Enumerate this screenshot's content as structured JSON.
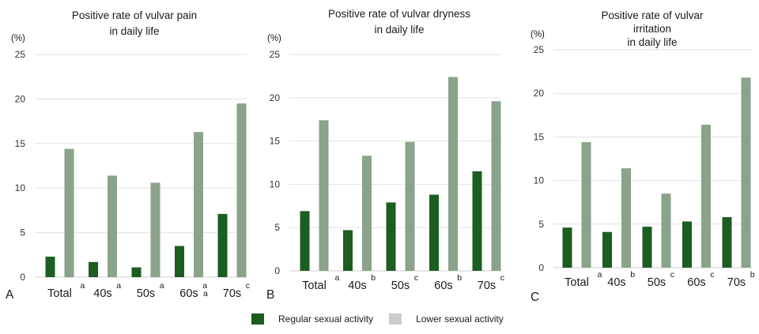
{
  "colors": {
    "regular": "#1b5e20",
    "lower": "#8aa38a",
    "grid": "#e2e2e2",
    "text": "#1a1a1a"
  },
  "legend": {
    "regular_label": "Regular sexual activity",
    "lower_label": "Lower sexual activity",
    "regular_color": "#1b5e20",
    "lower_color": "#cccccc"
  },
  "chart_data": [
    {
      "type": "bar",
      "panel_letter": "A",
      "title": [
        "Positive rate of vulvar pain",
        "in daily life"
      ],
      "ylabel": "(%)",
      "ylim": [
        0,
        25
      ],
      "yticks": [
        0,
        5,
        10,
        15,
        20,
        25
      ],
      "grid": true,
      "categories": [
        "Total",
        "40s",
        "50s",
        "60s",
        "70s"
      ],
      "superscripts": [
        "a",
        "a",
        "a",
        "a",
        "c"
      ],
      "extra_marks": [
        "a"
      ],
      "series": [
        {
          "name": "Regular sexual activity",
          "values": [
            2.3,
            1.7,
            1.1,
            3.5,
            7.1
          ]
        },
        {
          "name": "Lower sexual activity",
          "values": [
            14.4,
            11.4,
            10.6,
            16.3,
            19.5
          ]
        }
      ]
    },
    {
      "type": "bar",
      "panel_letter": "B",
      "title": [
        "Positive  rate of vulvar dryness",
        "in daily life"
      ],
      "ylabel": "(%)",
      "ylim": [
        0,
        25
      ],
      "yticks": [
        0,
        5,
        10,
        15,
        20,
        25
      ],
      "grid": true,
      "categories": [
        "Total",
        "40s",
        "50s",
        "60s",
        "70s"
      ],
      "superscripts": [
        "a",
        "b",
        "c",
        "b",
        "c"
      ],
      "extra_marks": [],
      "series": [
        {
          "name": "Regular sexual activity",
          "values": [
            6.9,
            4.7,
            7.9,
            8.8,
            11.5
          ]
        },
        {
          "name": "Lower sexual activity",
          "values": [
            17.4,
            13.3,
            14.9,
            22.4,
            19.6
          ]
        }
      ]
    },
    {
      "type": "bar",
      "panel_letter": "C",
      "title": [
        "Positive  rate of    vulvar",
        "irritation",
        "in daily life"
      ],
      "ylabel": "(%)",
      "ylim": [
        0,
        25
      ],
      "yticks": [
        0,
        5,
        10,
        15,
        20,
        25
      ],
      "grid": true,
      "categories": [
        "Total",
        "40s",
        "50s",
        "60s",
        "70s"
      ],
      "superscripts": [
        "a",
        "b",
        "c",
        "c",
        "b"
      ],
      "extra_marks": [],
      "series": [
        {
          "name": "Regular sexual activity",
          "values": [
            4.6,
            4.1,
            4.7,
            5.3,
            5.8
          ]
        },
        {
          "name": "Lower sexual activity",
          "values": [
            14.4,
            11.4,
            8.5,
            16.4,
            21.8
          ]
        }
      ]
    }
  ]
}
